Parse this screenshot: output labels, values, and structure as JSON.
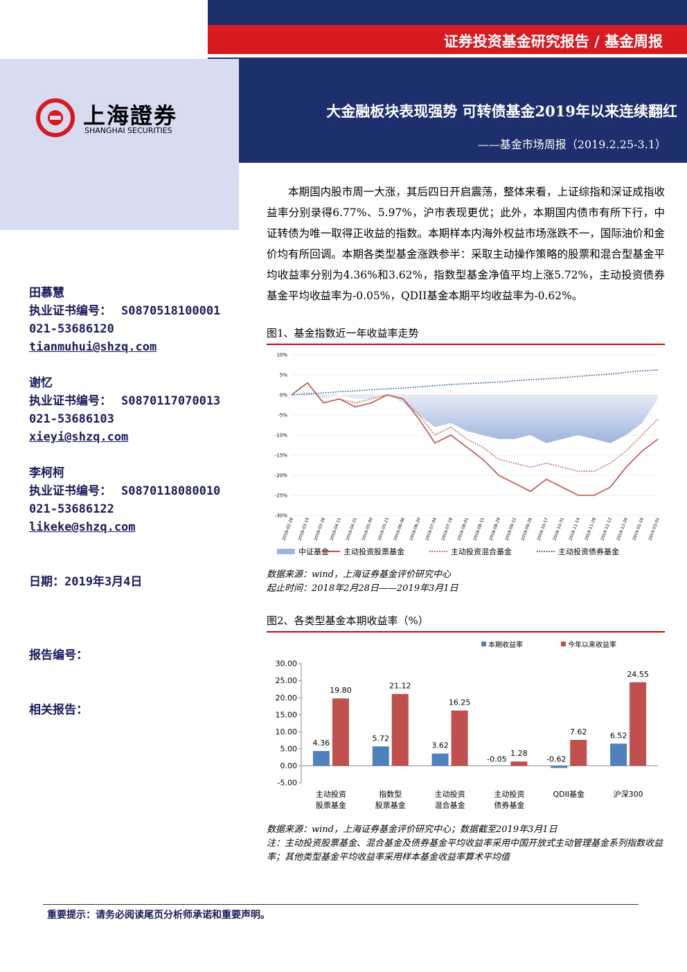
{
  "header": {
    "section": "证券投资基金研究报告 / 基金周报",
    "logo_cn": "上海證券",
    "logo_en": "SHANGHAI SECURITIES",
    "title": "大金融板块表现强势 可转债基金2019年以来连续翻红",
    "subtitle": "——基金市场周报（2019.2.25-3.1）"
  },
  "sidebar": {
    "authors": [
      {
        "name": "田慕慧",
        "cert_label": "执业证书编号：",
        "cert": "S0870518100001",
        "phone": "021-53686120",
        "email": "tianmuhui@shzq.com"
      },
      {
        "name": "谢忆",
        "cert_label": "执业证书编号：",
        "cert": "S0870117070013",
        "phone": "021-53686103",
        "email": "xieyi@shzq.com"
      },
      {
        "name": "李柯柯",
        "cert_label": "执业证书编号：",
        "cert": "S0870118080010",
        "phone": "021-53686122",
        "email": "likeke@shzq.com"
      }
    ],
    "date": "日期：2019年3月4日",
    "report_no": "报告编号：",
    "related": "相关报告："
  },
  "body": {
    "paragraph": "本期国内股市周一大涨，其后四日开启震荡，整体来看，上证综指和深证成指收益率分别录得6.77%、5.97%，沪市表现更优；此外，本期国内债市有所下行，中证转债为唯一取得正收益的指数。本期样本内海外权益市场涨跌不一，国际油价和金价均有所回调。本期各类型基金涨跌参半：采取主动操作策略的股票和混合型基金平均收益率分别为4.36%和3.62%，指数型基金净值平均上涨5.72%，主动投资债券基金平均收益率为-0.05%，QDII基金本期平均收益率为-0.62%。"
  },
  "chart_data": [
    {
      "type": "line",
      "title": "图1、基金指数近一年收益率走势",
      "categories": [
        "2018-02-28",
        "2018-03-14",
        "2018-03-28",
        "2018-04-11",
        "2018-04-25",
        "2018-05-09",
        "2018-05-23",
        "2018-06-06",
        "2018-06-20",
        "2018-07-04",
        "2018-07-18",
        "2018-08-01",
        "2018-08-15",
        "2018-08-29",
        "2018-09-12",
        "2018-09-26",
        "2018-10-17",
        "2018-10-31",
        "2018-11-14",
        "2018-11-28",
        "2018-12-12",
        "2018-12-26",
        "2019-01-16",
        "2019-03-01"
      ],
      "series": [
        {
          "name": "中证基金",
          "color": "#9fb5dd",
          "style": "area",
          "values": [
            0,
            1,
            -1,
            0,
            -1,
            -1,
            0,
            -2,
            -5,
            -8,
            -7,
            -9,
            -10,
            -11,
            -11,
            -10,
            -12,
            -11,
            -10,
            -11,
            -12,
            -10,
            -7,
            -1
          ]
        },
        {
          "name": "主动投资股票基金",
          "color": "#c0504d",
          "style": "solid",
          "values": [
            0,
            3,
            -2,
            -1,
            -3,
            -2,
            0,
            -1,
            -6,
            -12,
            -10,
            -13,
            -16,
            -20,
            -22,
            -24,
            -21,
            -23,
            -25,
            -25,
            -23,
            -18,
            -14,
            -11
          ]
        },
        {
          "name": "主动投资混合基金",
          "color": "#c0504d",
          "style": "dotted",
          "values": [
            0,
            3,
            -2,
            -1,
            -2,
            -1,
            0,
            -1,
            -5,
            -10,
            -8,
            -11,
            -13,
            -16,
            -17,
            -18,
            -17,
            -18,
            -19,
            -19,
            -17,
            -14,
            -10,
            -6
          ]
        },
        {
          "name": "主动投资债券基金",
          "color": "#1f4e9c",
          "style": "dotted",
          "values": [
            0,
            0.2,
            0.5,
            0.8,
            1,
            1.3,
            1.5,
            1.7,
            2,
            2.3,
            2.6,
            2.8,
            3,
            3.2,
            3.5,
            3.8,
            4,
            4.3,
            4.6,
            4.9,
            5.2,
            5.6,
            6,
            6.2
          ]
        }
      ],
      "ylim": [
        -30,
        10
      ],
      "yticks": [
        {
          "value": 10,
          "label": "10%"
        },
        {
          "value": 5,
          "label": "5%"
        },
        {
          "value": 0,
          "label": "0%"
        },
        {
          "value": -5,
          "label": "-5%"
        },
        {
          "value": -10,
          "label": "-10%"
        },
        {
          "value": -15,
          "label": "-15%"
        },
        {
          "value": -20,
          "label": "-20%"
        },
        {
          "value": -25,
          "label": "-25%"
        },
        {
          "value": -30,
          "label": "-30%"
        }
      ],
      "notes": [
        "数据来源：wind，上海证券基金评价研究中心",
        "起止时间：2018年2月28日——2019年3月1日"
      ]
    },
    {
      "type": "bar",
      "title": "图2、各类型基金本期收益率（%）",
      "categories": [
        [
          "主动投资",
          "股票基金"
        ],
        [
          "指数型",
          "股票基金"
        ],
        [
          "主动投资",
          "混合基金"
        ],
        [
          "主动投资",
          "债券基金"
        ],
        [
          "QDII基金"
        ],
        [
          "沪深300"
        ]
      ],
      "series": [
        {
          "name": "本期收益率",
          "color": "#4f81bd",
          "values": [
            4.36,
            5.72,
            3.62,
            -0.05,
            -0.62,
            6.52
          ],
          "value_labels": [
            "4.36",
            "5.72",
            "3.62",
            "-0.05",
            "-0.62",
            "6.52"
          ]
        },
        {
          "name": "今年以来收益率",
          "color": "#c0504d",
          "values": [
            19.8,
            21.12,
            16.25,
            1.28,
            7.62,
            24.55
          ],
          "value_labels": [
            "19.80",
            "21.12",
            "16.25",
            "1.28",
            "7.62",
            "24.55"
          ]
        }
      ],
      "ylim": [
        -5,
        30
      ],
      "yticks": [
        {
          "value": 30,
          "label": "30.00"
        },
        {
          "value": 25,
          "label": "25.00"
        },
        {
          "value": 20,
          "label": "20.00"
        },
        {
          "value": 15,
          "label": "15.00"
        },
        {
          "value": 10,
          "label": "10.00"
        },
        {
          "value": 5,
          "label": "5.00"
        },
        {
          "value": 0,
          "label": "0.00"
        },
        {
          "value": -5,
          "label": "-5.00"
        }
      ],
      "notes": [
        "数据来源：wind，上海证券基金评价研究中心；数据截至2019年3月1日",
        "注：主动投资股票基金、混合基金及债券基金平均收益率采用中国开放式主动管理基金系列指数收益率；其他类型基金平均收益率采用样本基金收益率算术平均值"
      ]
    }
  ],
  "footer": {
    "notice": "重要提示：请务必阅读尾页分析师承诺和重要声明。"
  }
}
